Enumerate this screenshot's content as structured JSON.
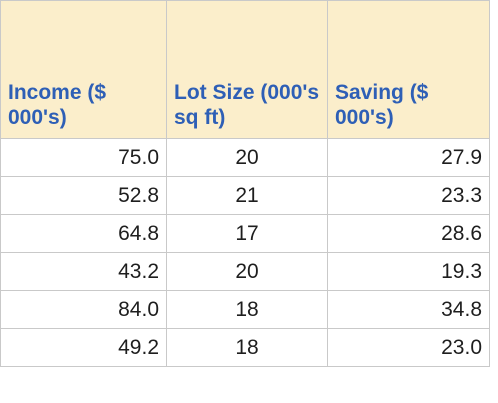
{
  "table": {
    "headers": [
      "Income ($ 000's)",
      "Lot Size (000's sq ft)",
      "Saving ($ 000's)"
    ],
    "rows": [
      [
        "75.0",
        "20",
        "27.9"
      ],
      [
        "52.8",
        "21",
        "23.3"
      ],
      [
        "64.8",
        "17",
        "28.6"
      ],
      [
        "43.2",
        "20",
        "19.3"
      ],
      [
        "84.0",
        "18",
        "34.8"
      ],
      [
        "49.2",
        "18",
        "23.0"
      ]
    ]
  },
  "colors": {
    "header_background": "#fbeecb",
    "header_text": "#2e5fb6",
    "grid": "#c9c9c9"
  }
}
